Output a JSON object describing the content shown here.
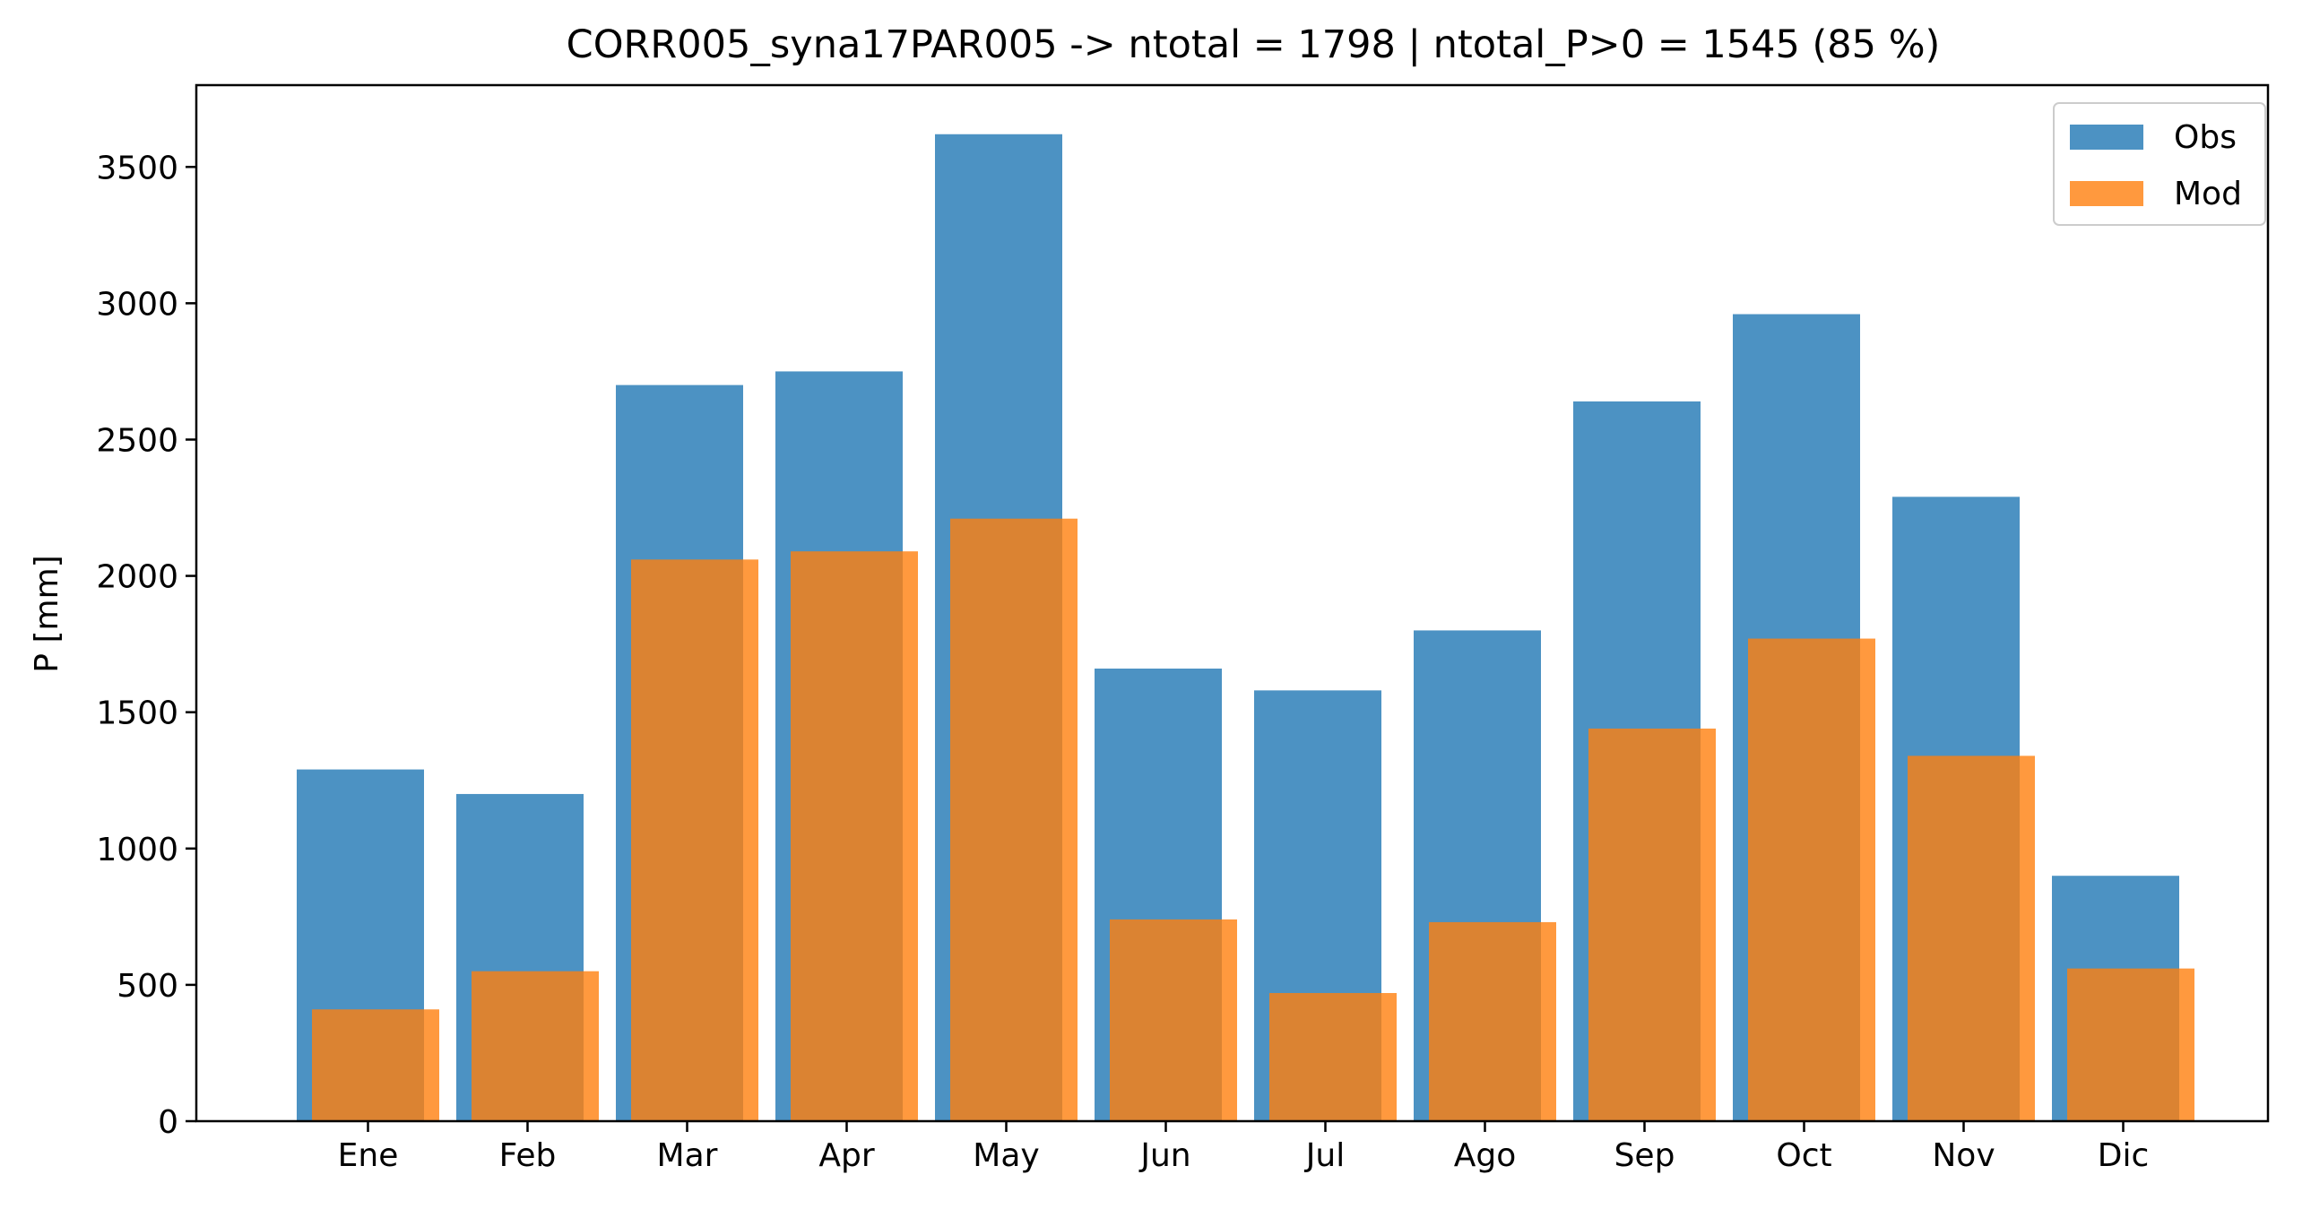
{
  "chart_data": {
    "type": "bar",
    "title": "CORR005_syna17PAR005 -> ntotal = 1798 | ntotal_P>0 = 1545 (85 %)",
    "xlabel": "",
    "ylabel": "P [mm]",
    "ylim": [
      0,
      3800
    ],
    "yticks": [
      0,
      500,
      1000,
      1500,
      2000,
      2500,
      3000,
      3500
    ],
    "categories": [
      "Ene",
      "Feb",
      "Mar",
      "Apr",
      "May",
      "Jun",
      "Jul",
      "Ago",
      "Sep",
      "Oct",
      "Nov",
      "Dic"
    ],
    "series": [
      {
        "name": "Obs",
        "color": "#1f77b4",
        "opacity": 0.8,
        "values": [
          1290,
          1200,
          2700,
          2750,
          3620,
          1660,
          1580,
          1800,
          2640,
          2960,
          2290,
          900
        ]
      },
      {
        "name": "Mod",
        "color": "#ff7f0e",
        "opacity": 0.8,
        "values": [
          410,
          550,
          2060,
          2090,
          2210,
          740,
          470,
          730,
          1440,
          1770,
          1340,
          560
        ]
      }
    ],
    "grid": false,
    "legend_position": "top-right"
  }
}
